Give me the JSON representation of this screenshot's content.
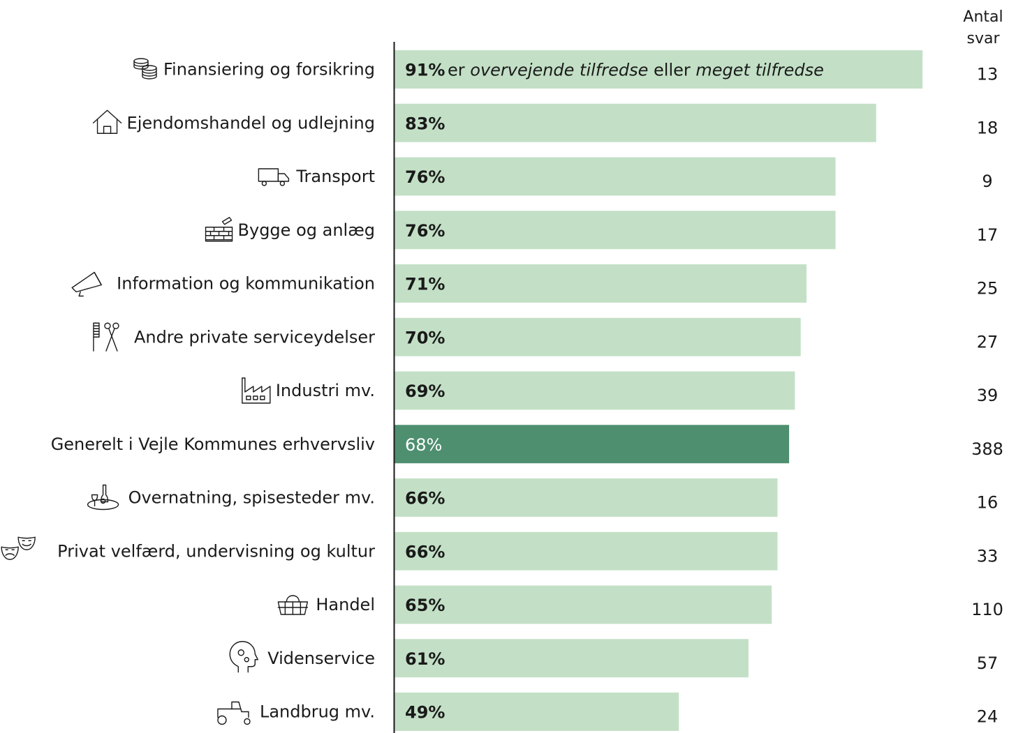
{
  "chart_data": {
    "type": "bar",
    "orientation": "horizontal",
    "n_header": [
      "Antal",
      "svar"
    ],
    "annotation": {
      "pre": "er",
      "italic1": "overvejende tilfredse",
      "mid": "eller",
      "italic2": "meget tilfredse"
    },
    "colors": {
      "bar": "#c3e0c6",
      "highlight": "#4e8f6f",
      "axis": "#1a1a1a"
    },
    "xlim": [
      0,
      100
    ],
    "highlight_index": 7,
    "categories": [
      "Finansiering og forsikring",
      "Ejendomshandel og udlejning",
      "Transport",
      "Bygge og anlæg",
      "Information og kommunikation",
      "Andre private serviceydelser",
      "Industri mv.",
      "Generelt i Vejle Kommunes erhvervsliv",
      "Overnatning, spisesteder mv.",
      "Privat velfærd, undervisning og kultur",
      "Handel",
      "Videnservice",
      "Landbrug mv."
    ],
    "values": [
      91,
      83,
      76,
      76,
      71,
      70,
      69,
      68,
      66,
      66,
      65,
      61,
      49
    ],
    "value_labels": [
      "91%",
      "83%",
      "76%",
      "76%",
      "71%",
      "70%",
      "69%",
      "68%",
      "66%",
      "66%",
      "65%",
      "61%",
      "49%"
    ],
    "n_values": [
      "13",
      "18",
      "9",
      "17",
      "25",
      "27",
      "39",
      "388",
      "16",
      "33",
      "110",
      "57",
      "24"
    ],
    "icons": [
      "coins-icon",
      "house-icon",
      "truck-icon",
      "brick-wall-icon",
      "megaphone-icon",
      "comb-scissors-icon",
      "factory-icon",
      "",
      "dining-icon",
      "theater-masks-icon",
      "basket-icon",
      "head-gears-icon",
      "tractor-icon"
    ]
  }
}
